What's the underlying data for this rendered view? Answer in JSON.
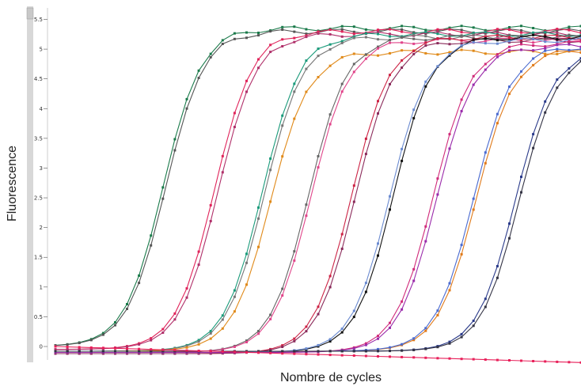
{
  "chart_data": {
    "type": "line",
    "xlabel": "Nombre de cycles",
    "ylabel": "Fluorescence",
    "x_tick_labels": [],
    "y_tick_labels": [
      "5.5",
      "5",
      "4.5",
      "4",
      "3.5",
      "3",
      "2.5",
      "2",
      "1.5",
      "1",
      "0.5",
      "0"
    ],
    "y_ticks": [
      5.5,
      5,
      4.5,
      4,
      3.5,
      3,
      2.5,
      2,
      1.5,
      1,
      0.5,
      0
    ],
    "xlim": [
      1,
      45
    ],
    "ylim": [
      0,
      5.6
    ],
    "grid": false,
    "legend": "none",
    "series": [
      {
        "color": "#1a7a4a",
        "midpoint": 10.0,
        "plateau": 5.35,
        "baseline": 0.0,
        "slope": 1.6
      },
      {
        "color": "#555555",
        "midpoint": 10.2,
        "plateau": 5.3,
        "baseline": 0.0,
        "slope": 1.6
      },
      {
        "color": "#e0235a",
        "midpoint": 14.3,
        "plateau": 5.3,
        "baseline": -0.05,
        "slope": 1.6
      },
      {
        "color": "#b0306a",
        "midpoint": 14.6,
        "plateau": 5.25,
        "baseline": -0.05,
        "slope": 1.6
      },
      {
        "color": "#1a9a7a",
        "midpoint": 18.3,
        "plateau": 5.25,
        "baseline": -0.08,
        "slope": 1.6
      },
      {
        "color": "#777777",
        "midpoint": 18.5,
        "plateau": 5.2,
        "baseline": -0.08,
        "slope": 1.6
      },
      {
        "color": "#e08a1a",
        "midpoint": 19.0,
        "plateau": 4.95,
        "baseline": -0.08,
        "slope": 1.6
      },
      {
        "color": "#666666",
        "midpoint": 22.2,
        "plateau": 5.2,
        "baseline": -0.1,
        "slope": 1.6
      },
      {
        "color": "#e0458a",
        "midpoint": 22.4,
        "plateau": 5.15,
        "baseline": -0.1,
        "slope": 1.6
      },
      {
        "color": "#cc2244",
        "midpoint": 25.8,
        "plateau": 5.2,
        "baseline": -0.12,
        "slope": 1.6
      },
      {
        "color": "#8a2a5a",
        "midpoint": 26.1,
        "plateau": 5.15,
        "baseline": -0.12,
        "slope": 1.6
      },
      {
        "color": "#111111",
        "midpoint": 29.3,
        "plateau": 5.2,
        "baseline": -0.1,
        "slope": 1.6
      },
      {
        "color": "#6a8ad0",
        "midpoint": 29.0,
        "plateau": 5.15,
        "baseline": -0.1,
        "slope": 1.6
      },
      {
        "color": "#d02a7a",
        "midpoint": 32.6,
        "plateau": 5.1,
        "baseline": -0.1,
        "slope": 1.6
      },
      {
        "color": "#9a2aaa",
        "midpoint": 32.9,
        "plateau": 5.05,
        "baseline": -0.1,
        "slope": 1.6
      },
      {
        "color": "#e07a1a",
        "midpoint": 36.2,
        "plateau": 5.0,
        "baseline": -0.08,
        "slope": 1.6
      },
      {
        "color": "#4a6ad0",
        "midpoint": 36.0,
        "plateau": 5.05,
        "baseline": -0.08,
        "slope": 1.6
      },
      {
        "color": "#2a3a8a",
        "midpoint": 39.5,
        "plateau": 5.0,
        "baseline": -0.08,
        "slope": 1.6
      },
      {
        "color": "#333344",
        "midpoint": 39.8,
        "plateau": 4.95,
        "baseline": -0.08,
        "slope": 1.6
      },
      {
        "color": "#e8205a",
        "midpoint": 90,
        "plateau": 0.0,
        "baseline": -0.3,
        "slope": 1.6
      }
    ]
  }
}
